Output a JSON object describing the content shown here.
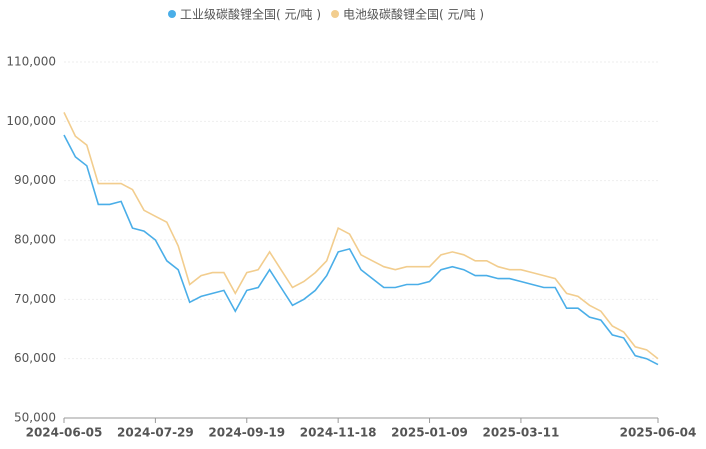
{
  "chart_data": {
    "type": "line",
    "categories": [
      "2024-06-05",
      null,
      null,
      null,
      null,
      null,
      null,
      null,
      "2024-07-29",
      null,
      null,
      null,
      null,
      null,
      null,
      null,
      "2024-09-19",
      null,
      null,
      null,
      null,
      null,
      null,
      null,
      "2024-11-18",
      null,
      null,
      null,
      null,
      null,
      null,
      null,
      "2025-01-09",
      null,
      null,
      null,
      null,
      null,
      null,
      null,
      "2025-03-11",
      null,
      null,
      null,
      null,
      null,
      null,
      null,
      null,
      null,
      null,
      null,
      "2025-06-04"
    ],
    "series": [
      {
        "name": "工业级碳酸锂全国( 元/吨 )",
        "color": "#4aaee8",
        "values": [
          97700,
          94000,
          92500,
          86000,
          86000,
          86500,
          82000,
          81500,
          80000,
          76500,
          75000,
          69500,
          70500,
          71000,
          71500,
          68000,
          71500,
          72000,
          75000,
          72000,
          69000,
          70000,
          71500,
          74000,
          78000,
          78500,
          75000,
          73500,
          72000,
          72000,
          72500,
          72500,
          73000,
          75000,
          75500,
          75000,
          74000,
          74000,
          73500,
          73500,
          73000,
          72500,
          72000,
          72000,
          68500,
          68500,
          67000,
          66500,
          64000,
          63500,
          60500,
          60000,
          59000
        ]
      },
      {
        "name": "电池级碳酸锂全国( 元/吨 )",
        "color": "#f2cd8e",
        "values": [
          101500,
          97500,
          96000,
          89500,
          89500,
          89500,
          88500,
          85000,
          84000,
          83000,
          79000,
          72500,
          74000,
          74500,
          74500,
          71000,
          74500,
          75000,
          78000,
          75000,
          72000,
          73000,
          74500,
          76500,
          82000,
          81000,
          77500,
          76500,
          75500,
          75000,
          75500,
          75500,
          75500,
          77500,
          78000,
          77500,
          76500,
          76500,
          75500,
          75000,
          75000,
          74500,
          74000,
          73500,
          71000,
          70500,
          69000,
          68000,
          65500,
          64500,
          62000,
          61500,
          60000
        ]
      }
    ],
    "ylim": [
      50000,
      110000
    ],
    "yticks": [
      {
        "value": 50000,
        "label": "50,000"
      },
      {
        "value": 60000,
        "label": "60,000"
      },
      {
        "value": 70000,
        "label": "70,000"
      },
      {
        "value": 80000,
        "label": "80,000"
      },
      {
        "value": 90000,
        "label": "90,000"
      },
      {
        "value": 100000,
        "label": "100,000"
      },
      {
        "value": 110000,
        "label": "110,000"
      }
    ],
    "grid": true,
    "legend": "top"
  }
}
